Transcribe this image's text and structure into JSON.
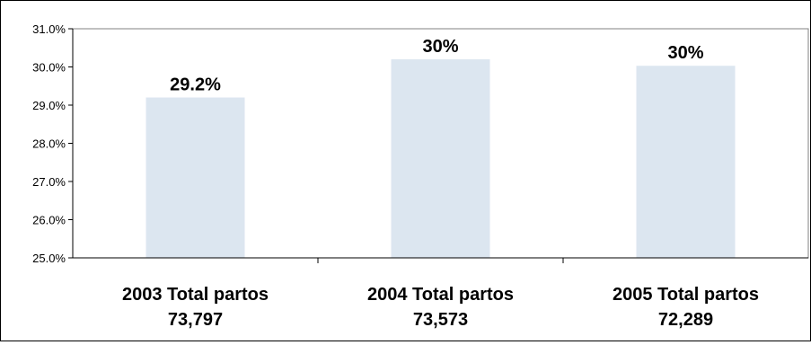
{
  "chart_data": {
    "type": "bar",
    "categories": [
      [
        "2003 Total partos",
        "73,797"
      ],
      [
        "2004 Total partos",
        "73,573"
      ],
      [
        "2005 Total partos",
        "72,289"
      ]
    ],
    "values": [
      29.2,
      30.2,
      30.03
    ],
    "data_labels": [
      "29.2%",
      "30%",
      "30%"
    ],
    "ylim": [
      25.0,
      31.0
    ],
    "yticks": [
      25.0,
      26.0,
      27.0,
      28.0,
      29.0,
      30.0,
      31.0
    ],
    "ytick_labels": [
      "25.0%",
      "26.0%",
      "27.0%",
      "28.0%",
      "29.0%",
      "30.0%",
      "31.0%"
    ],
    "title": "",
    "xlabel": "",
    "ylabel": "",
    "grid": false,
    "legend": "none",
    "bar_color": "#dce6f0",
    "axis_color": "#000000"
  }
}
